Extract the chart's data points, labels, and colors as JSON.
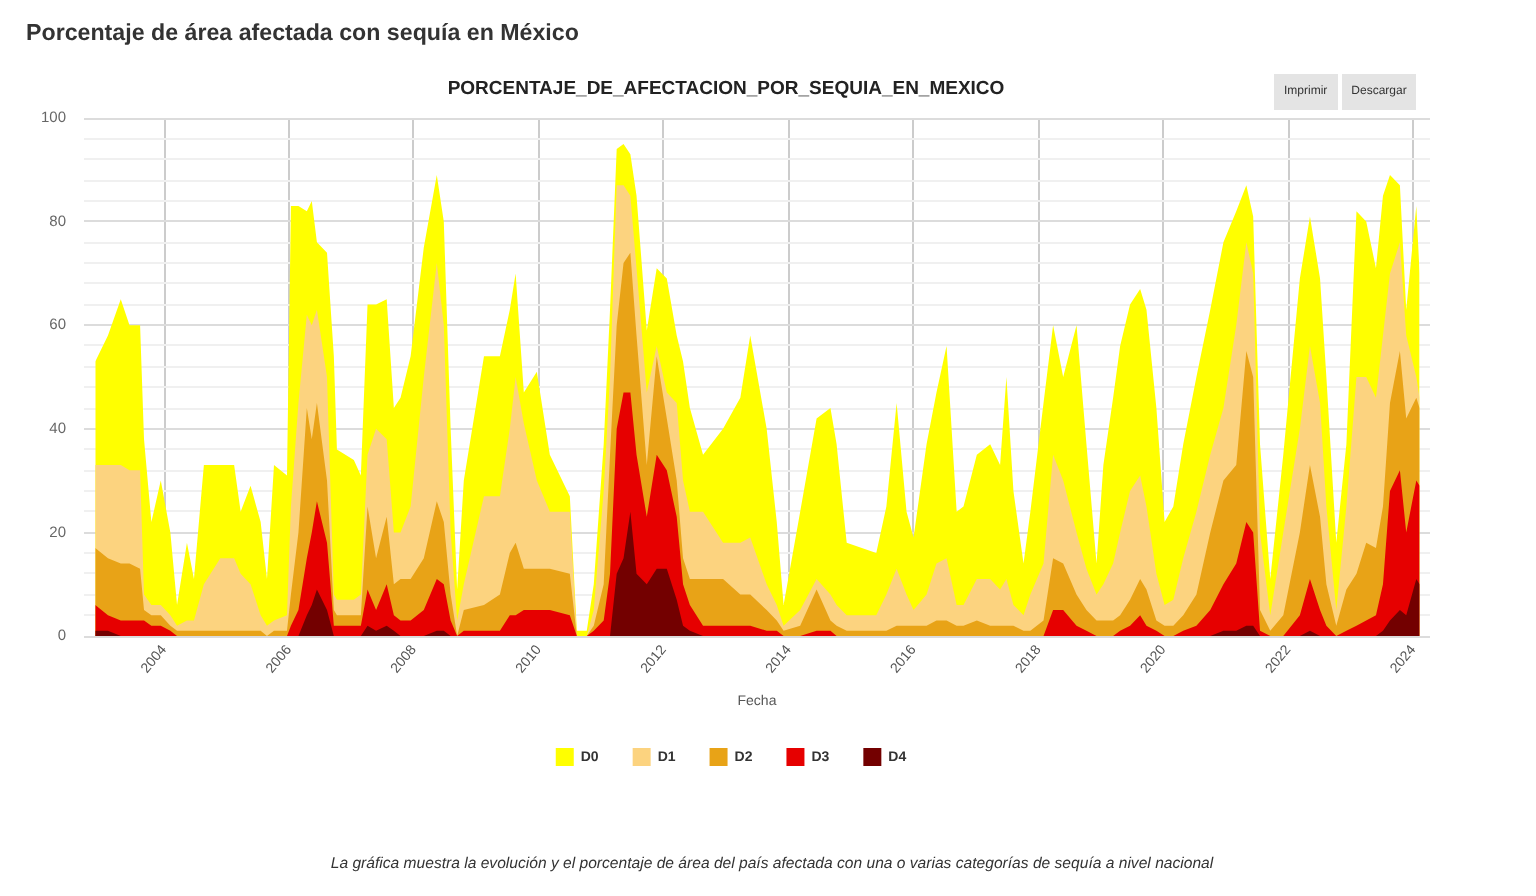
{
  "chart_data": {
    "type": "area",
    "title": "Porcentaje de área afectada con sequía en México",
    "subtitle": "PORCENTAJE_DE_AFECTACION_POR_SEQUIA_EN_MEXICO",
    "xlabel": "Fecha",
    "annotations": [
      "Imprimir",
      "Descargar",
      "La gráfica muestra la evolución y el porcentaje de área del país afectada con una o varias categorías de sequía a nivel nacional"
    ],
    "x": [
      "2002-11-25",
      "2003-02-07",
      "2003-04-23",
      "2003-06-13",
      "2003-08-14",
      "2003-09-06",
      "2003-10-19",
      "2003-12-13",
      "2004-02-07",
      "2004-03-17",
      "2004-05-14",
      "2004-06-24",
      "2004-08-21",
      "2004-11-25",
      "2005-02-14",
      "2005-03-24",
      "2005-05-21",
      "2005-07-19",
      "2005-08-25",
      "2005-10-05",
      "2005-12-20",
      "2006-01-12",
      "2006-02-25",
      "2006-04-15",
      "2006-05-14",
      "2006-06-13",
      "2006-08-11",
      "2006-09-20",
      "2006-10-08",
      "2007-01-15",
      "2007-02-25",
      "2007-04-05",
      "2007-05-25",
      "2007-07-26",
      "2007-09-06",
      "2007-10-15",
      "2007-12-13",
      "2008-02-28",
      "2008-05-14",
      "2008-06-24",
      "2008-08-03",
      "2008-09-10",
      "2008-10-19",
      "2009-02-14",
      "2009-05-18",
      "2009-07-15",
      "2009-08-18",
      "2009-10-05",
      "2009-12-20",
      "2010-03-06",
      "2010-07-01",
      "2010-08-11",
      "2010-10-08",
      "2010-11-18",
      "2011-01-15",
      "2011-02-21",
      "2011-04-01",
      "2011-05-11",
      "2011-06-20",
      "2011-07-26",
      "2011-09-24",
      "2011-11-21",
      "2012-01-19",
      "2012-03-17",
      "2012-04-23",
      "2012-06-02",
      "2012-08-18",
      "2012-12-13",
      "2013-03-24",
      "2013-05-21",
      "2013-08-25",
      "2013-10-23",
      "2013-12-02",
      "2014-03-09",
      "2014-06-13",
      "2014-09-02",
      "2014-10-08",
      "2014-12-06",
      "2015-05-28",
      "2015-07-26",
      "2015-09-24",
      "2015-11-21",
      "2016-01-01",
      "2016-03-17",
      "2016-05-14",
      "2016-07-12",
      "2016-09-09",
      "2016-10-19",
      "2017-01-05",
      "2017-03-24",
      "2017-05-21",
      "2017-06-27",
      "2017-08-07",
      "2017-10-05",
      "2017-11-14",
      "2018-01-30",
      "2018-03-27",
      "2018-05-25",
      "2018-08-11",
      "2018-10-08",
      "2018-12-06",
      "2019-01-15",
      "2019-03-13",
      "2019-04-23",
      "2019-06-20",
      "2019-08-18",
      "2019-09-24",
      "2019-11-21",
      "2020-01-08",
      "2020-02-28",
      "2020-04-26",
      "2020-07-12",
      "2020-10-01",
      "2020-12-17",
      "2021-03-02",
      "2021-04-30",
      "2021-06-09",
      "2021-07-19",
      "2021-09-17",
      "2021-12-02",
      "2022-03-09",
      "2022-05-07",
      "2022-07-05",
      "2022-08-11",
      "2022-10-08",
      "2022-12-06",
      "2023-02-03",
      "2023-04-01",
      "2023-05-28",
      "2023-07-08",
      "2023-08-18",
      "2023-10-15",
      "2023-11-21",
      "2024-01-19",
      "2024-02-07"
    ],
    "series": [
      {
        "name": "D0",
        "color": "#ffff00",
        "values": [
          53,
          58,
          65,
          60,
          60,
          38,
          22,
          30,
          20,
          6,
          18,
          11,
          33,
          33,
          33,
          24,
          29,
          22,
          11,
          33,
          31,
          83,
          83,
          82,
          84,
          76,
          74,
          54,
          36,
          34,
          31,
          64,
          64,
          65,
          44,
          46,
          54,
          75,
          89,
          80,
          40,
          9,
          30,
          54,
          54,
          63,
          70,
          47,
          51,
          35,
          27,
          1,
          1,
          10,
          37,
          63,
          94,
          95,
          93,
          85,
          59,
          71,
          69,
          58,
          53,
          44,
          35,
          40,
          46,
          58,
          40,
          22,
          6,
          24,
          42,
          44,
          37,
          18,
          16,
          25,
          45,
          24,
          19,
          37,
          47,
          56,
          24,
          25,
          35,
          37,
          33,
          50,
          28,
          14,
          24,
          45,
          60,
          50,
          60,
          37,
          14,
          33,
          46,
          56,
          64,
          67,
          63,
          44,
          22,
          25,
          37,
          50,
          63,
          76,
          82,
          87,
          81,
          37,
          11,
          35,
          69,
          81,
          69,
          50,
          18,
          37,
          82,
          80,
          71,
          85,
          89,
          87,
          63,
          83,
          70
        ]
      },
      {
        "name": "D1",
        "color": "#fcd37f",
        "values": [
          33,
          33,
          33,
          32,
          32,
          8,
          6,
          6,
          4,
          2,
          3,
          3,
          10,
          15,
          15,
          12,
          10,
          4,
          2,
          3,
          4,
          25,
          45,
          62,
          60,
          63,
          50,
          8,
          7,
          7,
          8,
          35,
          40,
          38,
          20,
          20,
          25,
          50,
          72,
          60,
          20,
          3,
          10,
          27,
          27,
          40,
          50,
          41,
          30,
          24,
          24,
          0,
          0,
          5,
          28,
          50,
          87,
          87,
          85,
          71,
          47,
          56,
          47,
          45,
          30,
          24,
          24,
          18,
          18,
          19,
          10,
          6,
          2,
          5,
          11,
          8,
          6,
          4,
          4,
          8,
          13,
          8,
          5,
          8,
          14,
          15,
          6,
          6,
          11,
          11,
          9,
          11,
          6,
          4,
          8,
          14,
          35,
          30,
          20,
          13,
          8,
          10,
          14,
          20,
          28,
          31,
          25,
          12,
          6,
          7,
          15,
          24,
          35,
          44,
          60,
          76,
          70,
          20,
          4,
          20,
          40,
          56,
          45,
          25,
          5,
          25,
          50,
          50,
          46,
          58,
          70,
          76,
          58,
          50,
          46
        ]
      },
      {
        "name": "D2",
        "color": "#e8a317",
        "values": [
          17,
          15,
          14,
          14,
          13,
          5,
          4,
          4,
          2,
          1,
          1,
          1,
          1,
          1,
          1,
          1,
          1,
          1,
          0,
          1,
          1,
          8,
          20,
          44,
          38,
          45,
          30,
          5,
          4,
          4,
          4,
          25,
          15,
          23,
          10,
          11,
          11,
          15,
          26,
          22,
          8,
          0,
          5,
          6,
          8,
          16,
          18,
          13,
          13,
          13,
          12,
          0,
          0,
          2,
          10,
          35,
          60,
          72,
          74,
          58,
          33,
          54,
          42,
          30,
          15,
          11,
          11,
          11,
          8,
          8,
          5,
          3,
          1,
          2,
          9,
          3,
          2,
          1,
          1,
          1,
          2,
          2,
          2,
          2,
          3,
          3,
          2,
          2,
          3,
          2,
          2,
          2,
          2,
          1,
          1,
          3,
          15,
          14,
          8,
          5,
          3,
          3,
          3,
          4,
          7,
          11,
          9,
          3,
          2,
          2,
          4,
          8,
          20,
          30,
          33,
          55,
          50,
          5,
          1,
          4,
          20,
          33,
          23,
          10,
          2,
          9,
          12,
          18,
          17,
          25,
          45,
          55,
          42,
          46,
          44
        ]
      },
      {
        "name": "D3",
        "color": "#e60000",
        "values": [
          6,
          4,
          3,
          3,
          3,
          3,
          2,
          2,
          1,
          0,
          0,
          0,
          0,
          0,
          0,
          0,
          0,
          0,
          0,
          0,
          0,
          2,
          5,
          15,
          20,
          26,
          18,
          2,
          2,
          2,
          2,
          9,
          5,
          10,
          4,
          3,
          3,
          5,
          11,
          10,
          3,
          0,
          1,
          1,
          1,
          4,
          4,
          5,
          5,
          5,
          4,
          0,
          0,
          1,
          3,
          12,
          40,
          47,
          47,
          35,
          23,
          35,
          32,
          23,
          10,
          6,
          2,
          2,
          2,
          2,
          1,
          1,
          0,
          0,
          1,
          1,
          0,
          0,
          0,
          0,
          0,
          0,
          0,
          0,
          0,
          0,
          0,
          0,
          0,
          0,
          0,
          0,
          0,
          0,
          0,
          0,
          5,
          5,
          2,
          1,
          0,
          0,
          0,
          1,
          2,
          4,
          2,
          1,
          0,
          0,
          1,
          2,
          5,
          10,
          14,
          22,
          20,
          1,
          0,
          0,
          4,
          11,
          5,
          2,
          0,
          1,
          2,
          3,
          4,
          10,
          28,
          32,
          20,
          30,
          29
        ]
      },
      {
        "name": "D4",
        "color": "#730000",
        "values": [
          1,
          1,
          0,
          0,
          0,
          0,
          0,
          0,
          0,
          0,
          0,
          0,
          0,
          0,
          0,
          0,
          0,
          0,
          0,
          0,
          0,
          0,
          0,
          4,
          6,
          9,
          5,
          0,
          0,
          0,
          0,
          2,
          1,
          2,
          1,
          0,
          0,
          0,
          1,
          1,
          0,
          0,
          0,
          0,
          0,
          0,
          0,
          0,
          0,
          0,
          0,
          0,
          0,
          0,
          0,
          0,
          12,
          15,
          24,
          12,
          10,
          13,
          13,
          7,
          2,
          1,
          0,
          0,
          0,
          0,
          0,
          0,
          0,
          0,
          0,
          0,
          0,
          0,
          0,
          0,
          0,
          0,
          0,
          0,
          0,
          0,
          0,
          0,
          0,
          0,
          0,
          0,
          0,
          0,
          0,
          0,
          0,
          0,
          0,
          0,
          0,
          0,
          0,
          0,
          0,
          0,
          0,
          0,
          0,
          0,
          0,
          0,
          0,
          1,
          1,
          2,
          2,
          0,
          0,
          0,
          0,
          1,
          0,
          0,
          0,
          0,
          0,
          0,
          0,
          1,
          3,
          5,
          4,
          11,
          10
        ]
      }
    ],
    "xlim": [
      "2002-09-20",
      "2024-04-08"
    ],
    "xticks": [
      "2004",
      "2006",
      "2008",
      "2010",
      "2012",
      "2014",
      "2016",
      "2018",
      "2020",
      "2022",
      "2024"
    ],
    "ylim": [
      0,
      100
    ],
    "yticks": [
      0,
      {
        "value": 4,
        "label": null
      },
      {
        "value": 8,
        "label": null
      },
      {
        "value": 12,
        "label": null
      },
      {
        "value": 16,
        "label": null
      },
      20,
      {
        "value": 24,
        "label": null
      },
      {
        "value": 28,
        "label": null
      },
      {
        "value": 32,
        "label": null
      },
      {
        "value": 36,
        "label": null
      },
      40,
      {
        "value": 44,
        "label": null
      },
      {
        "value": 48,
        "label": null
      },
      {
        "value": 52,
        "label": null
      },
      {
        "value": 56,
        "label": null
      },
      60,
      {
        "value": 64,
        "label": null
      },
      {
        "value": 68,
        "label": null
      },
      {
        "value": 72,
        "label": null
      },
      {
        "value": 76,
        "label": null
      },
      80,
      {
        "value": 84,
        "label": null
      },
      {
        "value": 88,
        "label": null
      },
      {
        "value": 92,
        "label": null
      },
      {
        "value": 96,
        "label": null
      },
      100
    ],
    "grid": true,
    "legend": "bottom"
  }
}
